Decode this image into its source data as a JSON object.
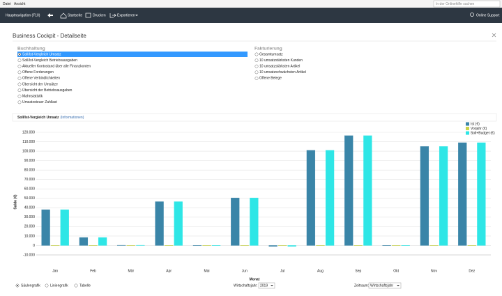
{
  "menu": [
    "Datei",
    "Ansicht"
  ],
  "search_placeholder": "In der Onlinehilfe suchen",
  "toolbar": {
    "navigation": "Hauptnavigation (F10)",
    "items": [
      "Startseite",
      "Drucken",
      "Exportieren"
    ],
    "support": "Online Support"
  },
  "page_title": "Business Cockpit  - Detailseite",
  "sections": [
    {
      "title": "Buchhaltung",
      "items": [
        "Soll/Ist-Vergleich Umsatz",
        "Soll/Ist-Vergleich Betriebsausgaben",
        "Aktueller Kontostand über alle Finanzkonten",
        "Offene Forderungen",
        "Offene Verbindlichkeiten",
        "Übersicht der Umsätze",
        "Übersicht der Betriebsausgaben",
        "Mahnstatistik",
        "Umsatzsteuer Zahllast"
      ]
    },
    {
      "title": "Fakturierung",
      "items": [
        "Gesamtumsatz",
        "10 umsatzstärksten Kunden",
        "10 umsatzstärksten Artikel",
        "10 umsatzschwächsten Artikel",
        "Offene Belege"
      ]
    }
  ],
  "chart_header": {
    "title": "Soll/Ist-Vergleich Umsatz",
    "link": "(Informationen)"
  },
  "chart_data": {
    "type": "bar",
    "xlabel": "Monat",
    "ylabel": "Saldo (€)",
    "categories": [
      "Jan",
      "Feb",
      "Mär",
      "Apr",
      "Mai",
      "Jun",
      "Jul",
      "Aug",
      "Sep",
      "Okt",
      "Nov",
      "Dez"
    ],
    "series": [
      {
        "name": "Ist (€)",
        "color": "#3a85a8",
        "values": [
          38000,
          8500,
          300,
          46500,
          0,
          50500,
          -1000,
          101000,
          116500,
          0,
          105000,
          109000
        ]
      },
      {
        "name": "Vorjahr (€)",
        "color": "#c9d34a",
        "values": [
          0,
          0,
          0,
          0,
          0,
          0,
          0,
          0,
          0,
          0,
          0,
          0
        ]
      },
      {
        "name": "Soll+Budget (€)",
        "color": "#2ee6e6",
        "values": [
          38000,
          8500,
          300,
          46500,
          0,
          50500,
          -1000,
          101000,
          116500,
          0,
          105000,
          109000
        ]
      }
    ],
    "ylim": [
      -10000,
      120000
    ],
    "yticks": [
      {
        "value": -10000,
        "label": "-10.000"
      },
      0,
      {
        "value": 10000,
        "label": "10.000"
      },
      {
        "value": 20000,
        "label": "20.000"
      },
      {
        "value": 30000,
        "label": "30.000"
      },
      {
        "value": 40000,
        "label": "40.000"
      },
      {
        "value": 50000,
        "label": "50.000"
      },
      {
        "value": 60000,
        "label": "60.000"
      },
      {
        "value": 70000,
        "label": "70.000"
      },
      {
        "value": 80000,
        "label": "80.000"
      },
      {
        "value": 90000,
        "label": "90.000"
      },
      {
        "value": 100000,
        "label": "100.000"
      },
      {
        "value": 110000,
        "label": "110.000"
      },
      {
        "value": 120000,
        "label": "120.000"
      }
    ],
    "grid": true,
    "legend": "top-right"
  },
  "footer": {
    "view_options": [
      "Säulengrafik",
      "Liniengrafik",
      "Tabelle"
    ],
    "year_label": "Wirtschaftsjahr:",
    "year": "2019",
    "period_label": "Zeitraum:",
    "period": "Wirtschaftsjahr"
  }
}
